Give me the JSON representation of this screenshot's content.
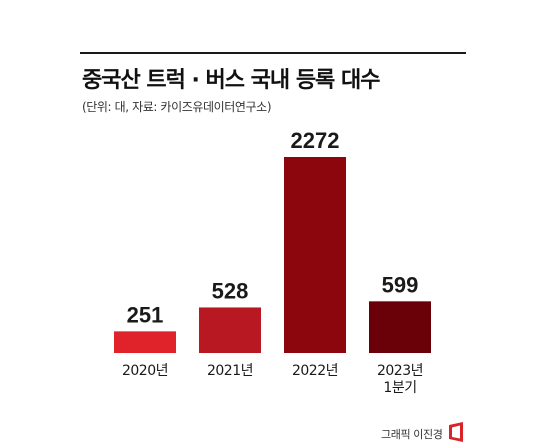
{
  "header": {
    "title": "중국산 트럭 · 버스 국내 등록 대수",
    "subtitle": "(단위: 대, 자료: 카이즈유데이터연구소)"
  },
  "chart_data": {
    "type": "bar",
    "categories": [
      [
        "2020년"
      ],
      [
        "2021년"
      ],
      [
        "2022년"
      ],
      [
        "2023년",
        "1분기"
      ]
    ],
    "values": [
      251,
      528,
      2272,
      599
    ],
    "data_labels": [
      "251",
      "528",
      "2272",
      "599"
    ],
    "colors": [
      "#e0232b",
      "#b81822",
      "#8c060e",
      "#6a0008"
    ],
    "ylim": [
      0,
      2272
    ],
    "grid": false,
    "legend": "none"
  },
  "footer": {
    "credit": "그래픽 이진경",
    "logo_color": "#d8232a"
  }
}
